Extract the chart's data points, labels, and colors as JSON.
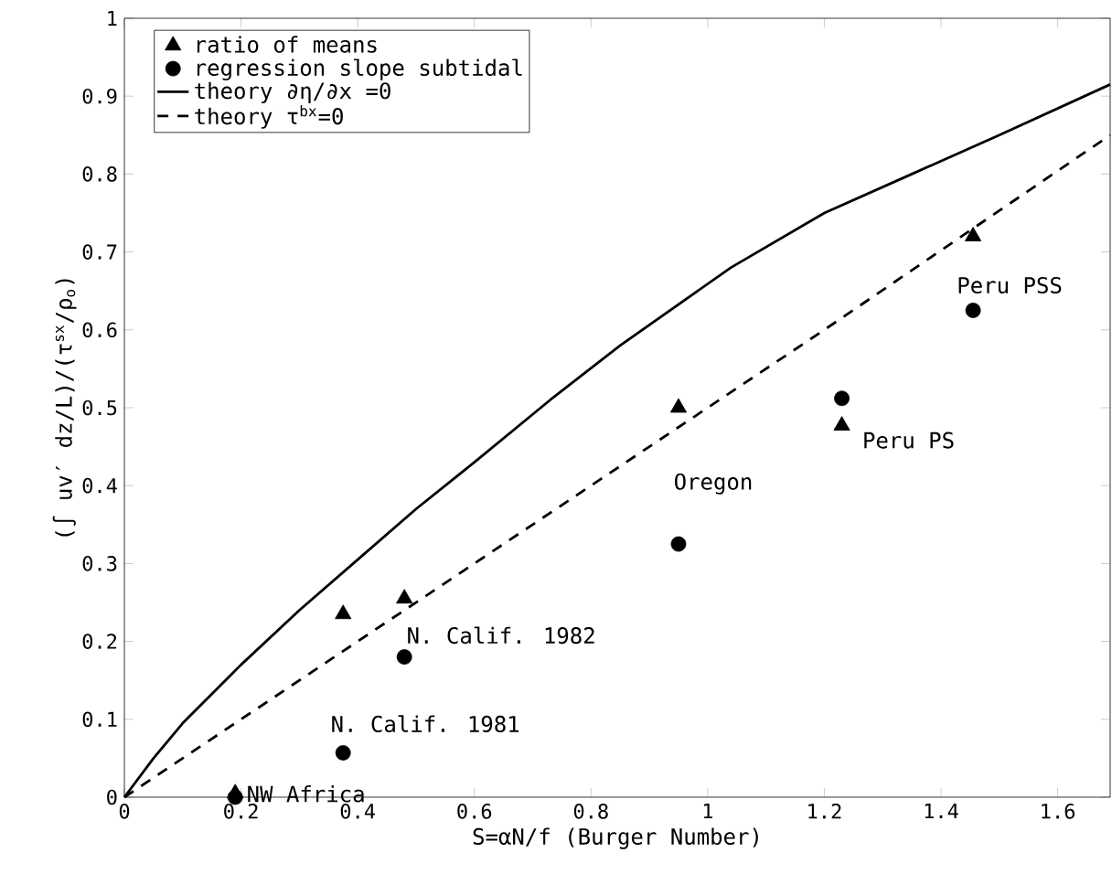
{
  "chart_data": {
    "type": "scatter",
    "xlabel": "S=αN/f (Burger Number)",
    "ylabel": "(∫ uv′ dz/L)/(τ$^{sx}$/ρ$_{o}$)",
    "xlim": [
      0,
      1.69
    ],
    "ylim": [
      0,
      1
    ],
    "xticks": [
      0,
      0.2,
      0.4,
      0.6,
      0.8,
      1,
      1.2,
      1.4,
      1.6
    ],
    "yticks": [
      0,
      0.1,
      0.2,
      0.3,
      0.4,
      0.5,
      0.6,
      0.7,
      0.8,
      0.9,
      1
    ],
    "grid": false,
    "legend": "top left",
    "series": [
      {
        "name": "ratio of means",
        "marker": "triangle",
        "color": "#000000",
        "x": [
          0.19,
          0.375,
          0.48,
          0.95,
          1.23,
          1.455
        ],
        "values": [
          0.005,
          0.235,
          0.255,
          0.5,
          0.477,
          0.72
        ]
      },
      {
        "name": "regression slope subtidal",
        "marker": "circle",
        "color": "#000000",
        "x": [
          0.19,
          0.375,
          0.48,
          0.95,
          1.23,
          1.455
        ],
        "values": [
          0.0,
          0.057,
          0.18,
          0.325,
          0.512,
          0.625
        ]
      },
      {
        "name": "theory ∂η/∂x =0",
        "type": "line",
        "marker": "none",
        "line_style": "solid",
        "color": "#000000",
        "x": [
          0,
          0.05,
          0.1,
          0.2,
          0.3,
          0.4,
          0.5,
          0.6,
          0.73,
          0.85,
          1.04,
          1.2,
          1.35,
          1.5,
          1.69
        ],
        "values": [
          0,
          0.05,
          0.095,
          0.17,
          0.24,
          0.305,
          0.37,
          0.43,
          0.51,
          0.58,
          0.68,
          0.75,
          0.8,
          0.85,
          0.915
        ]
      },
      {
        "name": "theory τ$^{bx}$=0",
        "type": "line",
        "marker": "none",
        "line_style": "dashed",
        "color": "#000000",
        "x": [
          0,
          0.4,
          0.8,
          1.2,
          1.69
        ],
        "values": [
          0,
          0.2,
          0.4,
          0.6,
          0.85
        ]
      }
    ],
    "annotations": [
      {
        "text": "NW Africa",
        "x": 0.19,
        "y": 0
      },
      {
        "text": "N. Calif. 1981",
        "x": 0.375,
        "y": 0.057
      },
      {
        "text": "N. Calif. 1982",
        "x": 0.48,
        "y": 0.18
      },
      {
        "text": "Oregon",
        "x": 0.95,
        "y": 0.325
      },
      {
        "text": "Peru PS",
        "x": 1.23,
        "y": 0.477
      },
      {
        "text": "Peru PSS",
        "x": 1.455,
        "y": 0.625
      }
    ]
  }
}
